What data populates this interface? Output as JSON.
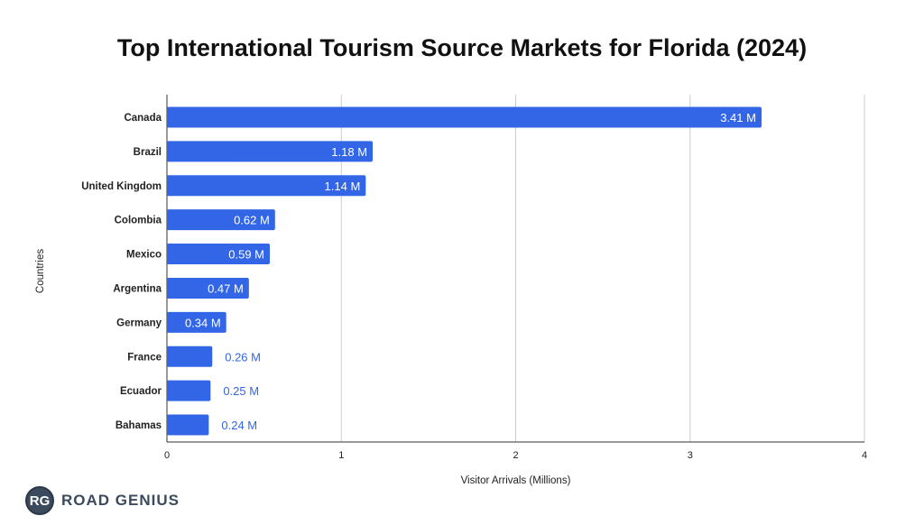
{
  "chart_data": {
    "type": "bar",
    "orientation": "horizontal",
    "title": "Top International Tourism Source Markets for Florida (2024)",
    "xlabel": "Visitor Arrivals (Millions)",
    "ylabel": "Countries",
    "xlim": [
      0,
      4
    ],
    "xticks": [
      "0",
      "1",
      "2",
      "3",
      "4"
    ],
    "grid": true,
    "categories": [
      "Canada",
      "Brazil",
      "United Kingdom",
      "Colombia",
      "Mexico",
      "Argentina",
      "Germany",
      "France",
      "Ecuador",
      "Bahamas"
    ],
    "values": [
      3.41,
      1.18,
      1.14,
      0.62,
      0.59,
      0.47,
      0.34,
      0.26,
      0.25,
      0.24
    ],
    "data_labels": [
      "3.41 M",
      "1.18 M",
      "1.14 M",
      "0.62 M",
      "0.59 M",
      "0.47 M",
      "0.34 M",
      "0.26 M",
      "0.25 M",
      "0.24 M"
    ],
    "colors": {
      "bar": "#3366e6",
      "grid": "#cccccc",
      "axis": "#333333",
      "label_outside": "#3366e6"
    }
  },
  "brand": {
    "logo_text": "RG",
    "name": "ROAD GENIUS"
  }
}
